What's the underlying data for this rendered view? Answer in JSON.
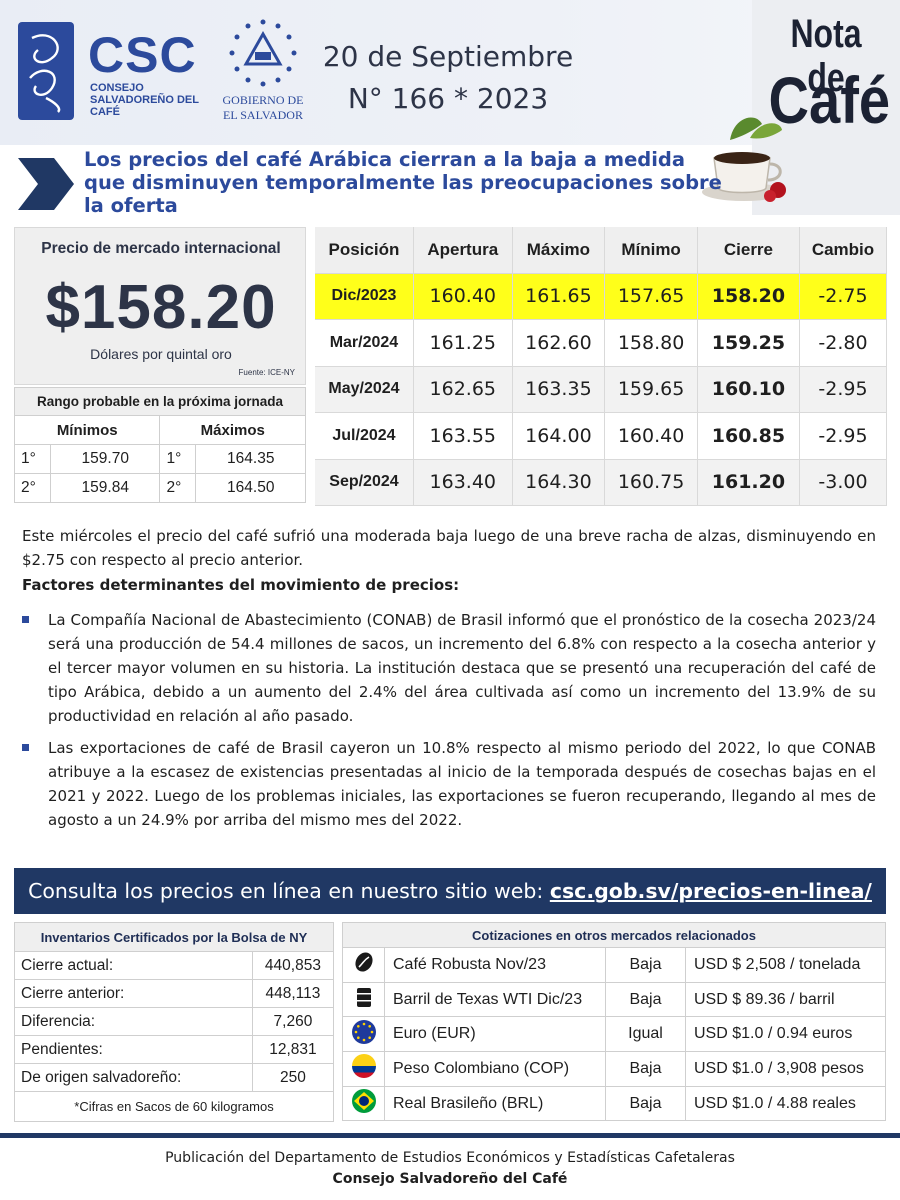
{
  "header": {
    "logo_title": "CSC",
    "logo_subtitle": "CONSEJO SALVADOREÑO DEL CAFÉ",
    "gov_text_1": "GOBIERNO DE",
    "gov_text_2": "EL SALVADOR",
    "date": "20 de Septiembre",
    "issue": "N° 166 * 2023",
    "nota_title": "Nota de",
    "nota_cafe": "Café"
  },
  "headline": "Los precios del café Arábica cierran a la baja a medida que disminuyen temporalmente las preocupaciones sobre la oferta",
  "price": {
    "label": "Precio de mercado internacional",
    "value": "$158.20",
    "unit": "Dólares por quintal oro",
    "source": "Fuente: ICE-NY"
  },
  "range": {
    "title": "Rango probable en la próxima jornada",
    "min_header": "Mínimos",
    "max_header": "Máximos",
    "rows": [
      {
        "min_ord": "1°",
        "min": "159.70",
        "max_ord": "1°",
        "max": "164.35"
      },
      {
        "min_ord": "2°",
        "min": "159.84",
        "max_ord": "2°",
        "max": "164.50"
      }
    ]
  },
  "futures": {
    "headers": [
      "Posición",
      "Apertura",
      "Máximo",
      "Mínimo",
      "Cierre",
      "Cambio"
    ],
    "rows": [
      {
        "pos": "Dic/2023",
        "open": "160.40",
        "high": "161.65",
        "low": "157.65",
        "close": "158.20",
        "change": "-2.75"
      },
      {
        "pos": "Mar/2024",
        "open": "161.25",
        "high": "162.60",
        "low": "158.80",
        "close": "159.25",
        "change": "-2.80"
      },
      {
        "pos": "May/2024",
        "open": "162.65",
        "high": "163.35",
        "low": "159.65",
        "close": "160.10",
        "change": "-2.95"
      },
      {
        "pos": "Jul/2024",
        "open": "163.55",
        "high": "164.00",
        "low": "160.40",
        "close": "160.85",
        "change": "-2.95"
      },
      {
        "pos": "Sep/2024",
        "open": "163.40",
        "high": "164.30",
        "low": "160.75",
        "close": "161.20",
        "change": "-3.00"
      }
    ]
  },
  "body": {
    "intro": "Este miércoles el precio del café sufrió una moderada baja luego de una breve racha de alzas, disminuyendo en $2.75 con respecto al precio anterior.",
    "factors_title": "Factores determinantes del movimiento de precios:",
    "bullets": [
      "La Compañía Nacional de Abastecimiento (CONAB) de Brasil informó que el pronóstico de la cosecha 2023/24 será una producción de 54.4 millones de sacos, un incremento del 6.8% con respecto a la cosecha anterior y el tercer mayor volumen en su historia. La institución destaca que se presentó una recuperación del café de tipo Arábica, debido a un aumento del 2.4% del área cultivada así como un incremento del 13.9% de su productividad en relación al año pasado.",
      "Las exportaciones de café de Brasil cayeron un 10.8% respecto al mismo periodo del 2022, lo que CONAB atribuye a la escasez de existencias presentadas al inicio de la temporada después de cosechas bajas en el 2021 y 2022. Luego de los problemas iniciales, las exportaciones se fueron recuperando, llegando al mes de agosto a un 24.9% por arriba del mismo mes del 2022."
    ]
  },
  "banner": {
    "text": "Consulta los precios en línea en nuestro sitio web: ",
    "link": "csc.gob.sv/precios-en-linea/"
  },
  "inventory": {
    "title": "Inventarios Certificados por la Bolsa de NY",
    "rows": [
      {
        "label": "Cierre actual:",
        "value": "440,853"
      },
      {
        "label": "Cierre anterior:",
        "value": "448,113"
      },
      {
        "label": "Diferencia:",
        "value": "7,260"
      },
      {
        "label": "Pendientes:",
        "value": "12,831"
      },
      {
        "label": "De origen salvadoreño:",
        "value": "250"
      }
    ],
    "note": "*Cifras en Sacos de 60 kilogramos"
  },
  "markets": {
    "title": "Cotizaciones en otros mercados relacionados",
    "rows": [
      {
        "icon": "coffee-bean-icon",
        "name": "Café Robusta Nov/23",
        "trend": "Baja",
        "price": "USD $ 2,508 / tonelada"
      },
      {
        "icon": "oil-barrel-icon",
        "name": "Barril de Texas WTI Dic/23",
        "trend": "Baja",
        "price": "USD $ 89.36 / barril"
      },
      {
        "icon": "eu-flag-icon",
        "name": "Euro (EUR)",
        "trend": "Igual",
        "price": "USD $1.0 / 0.94 euros"
      },
      {
        "icon": "colombia-flag-icon",
        "name": "Peso Colombiano (COP)",
        "trend": "Baja",
        "price": "USD $1.0 / 3,908 pesos"
      },
      {
        "icon": "brazil-flag-icon",
        "name": "Real Brasileño (BRL)",
        "trend": "Baja",
        "price": "USD $1.0 / 4.88 reales"
      }
    ]
  },
  "footer": {
    "line1": "Publicación del Departamento de Estudios Económicos y Estadísticas Cafetaleras",
    "line2": "Consejo Salvadoreño del Café"
  },
  "colors": {
    "brand_blue": "#2c4a9c",
    "navy": "#203864",
    "highlight_yellow": "#ffff1a"
  }
}
